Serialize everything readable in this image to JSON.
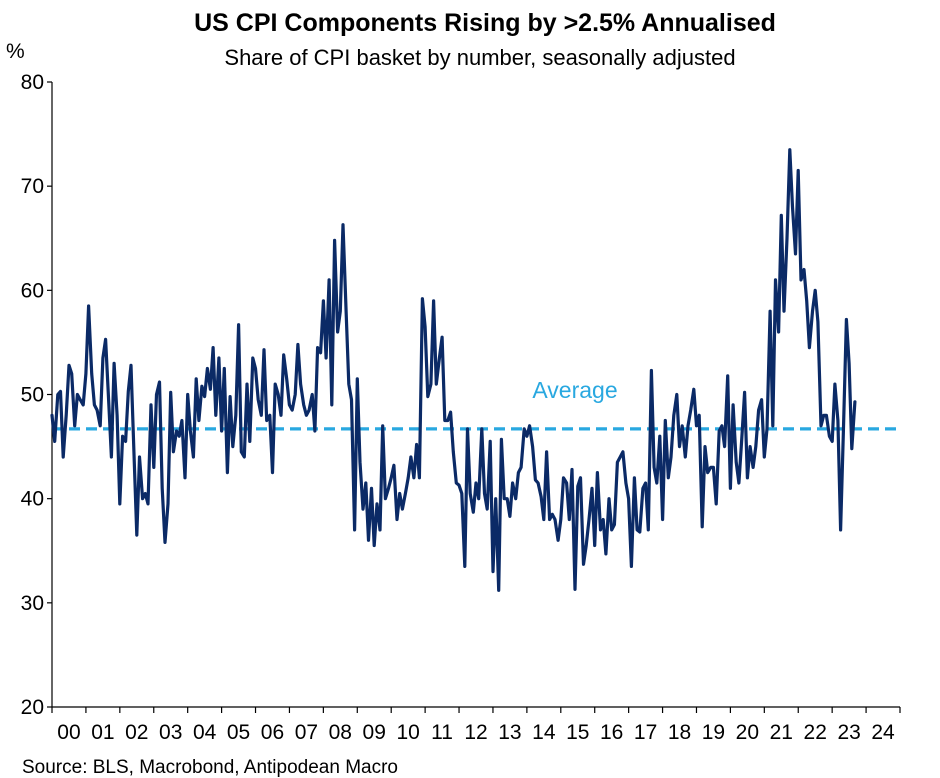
{
  "title": "US CPI Components Rising by >2.5% Annualised",
  "subtitle": "Share of CPI basket by number, seasonally adjusted",
  "y_unit": "%",
  "source": "Source: BLS, Macrobond, Antipodean Macro",
  "colors": {
    "series": "#0b2a66",
    "average": "#29a8e0"
  },
  "chart_data": {
    "type": "line",
    "title": "US CPI Components Rising by >2.5% Annualised",
    "subtitle": "Share of CPI basket by number, seasonally adjusted",
    "ylabel": "%",
    "ylim": [
      20,
      80
    ],
    "yticks": [
      20,
      30,
      40,
      50,
      60,
      70,
      80
    ],
    "xlim": [
      2000.0,
      2025.0
    ],
    "xtick_labels": [
      "00",
      "01",
      "02",
      "03",
      "04",
      "05",
      "06",
      "07",
      "08",
      "09",
      "10",
      "11",
      "12",
      "13",
      "14",
      "15",
      "16",
      "17",
      "18",
      "19",
      "20",
      "21",
      "22",
      "23",
      "24"
    ],
    "grid": false,
    "average": {
      "label": "Average",
      "value": 46.7
    },
    "series": [
      {
        "values": [
          [
            2000.0,
            48.0
          ],
          [
            2000.08,
            45.5
          ],
          [
            2000.17,
            50.0
          ],
          [
            2000.25,
            50.3
          ],
          [
            2000.33,
            44.0
          ],
          [
            2000.42,
            48.0
          ],
          [
            2000.5,
            52.8
          ],
          [
            2000.58,
            52.0
          ],
          [
            2000.67,
            47.0
          ],
          [
            2000.75,
            50.0
          ],
          [
            2000.83,
            49.5
          ],
          [
            2000.92,
            49.0
          ],
          [
            2001.0,
            52.0
          ],
          [
            2001.08,
            58.5
          ],
          [
            2001.17,
            52.0
          ],
          [
            2001.25,
            49.0
          ],
          [
            2001.33,
            48.5
          ],
          [
            2001.42,
            47.0
          ],
          [
            2001.5,
            53.5
          ],
          [
            2001.58,
            55.3
          ],
          [
            2001.67,
            49.5
          ],
          [
            2001.75,
            44.0
          ],
          [
            2001.83,
            53.0
          ],
          [
            2001.92,
            48.0
          ],
          [
            2002.0,
            39.5
          ],
          [
            2002.08,
            46.0
          ],
          [
            2002.17,
            45.5
          ],
          [
            2002.25,
            50.3
          ],
          [
            2002.33,
            52.8
          ],
          [
            2002.42,
            44.0
          ],
          [
            2002.5,
            36.5
          ],
          [
            2002.58,
            44.0
          ],
          [
            2002.67,
            40.0
          ],
          [
            2002.75,
            40.5
          ],
          [
            2002.83,
            39.5
          ],
          [
            2002.92,
            49.0
          ],
          [
            2003.0,
            43.0
          ],
          [
            2003.08,
            50.0
          ],
          [
            2003.17,
            51.2
          ],
          [
            2003.25,
            41.0
          ],
          [
            2003.33,
            35.8
          ],
          [
            2003.42,
            39.5
          ],
          [
            2003.5,
            50.2
          ],
          [
            2003.58,
            44.5
          ],
          [
            2003.67,
            46.5
          ],
          [
            2003.75,
            46.0
          ],
          [
            2003.83,
            47.5
          ],
          [
            2003.92,
            42.0
          ],
          [
            2004.0,
            50.0
          ],
          [
            2004.08,
            46.5
          ],
          [
            2004.17,
            44.0
          ],
          [
            2004.25,
            51.5
          ],
          [
            2004.33,
            47.5
          ],
          [
            2004.42,
            50.8
          ],
          [
            2004.5,
            49.8
          ],
          [
            2004.58,
            52.5
          ],
          [
            2004.67,
            50.5
          ],
          [
            2004.75,
            54.5
          ],
          [
            2004.83,
            48.0
          ],
          [
            2004.92,
            53.5
          ],
          [
            2005.0,
            46.5
          ],
          [
            2005.08,
            52.5
          ],
          [
            2005.17,
            42.5
          ],
          [
            2005.25,
            49.8
          ],
          [
            2005.33,
            45.0
          ],
          [
            2005.42,
            48.0
          ],
          [
            2005.5,
            56.7
          ],
          [
            2005.58,
            44.5
          ],
          [
            2005.67,
            44.0
          ],
          [
            2005.75,
            51.0
          ],
          [
            2005.83,
            45.5
          ],
          [
            2005.92,
            53.5
          ],
          [
            2006.0,
            52.5
          ],
          [
            2006.08,
            49.5
          ],
          [
            2006.17,
            48.0
          ],
          [
            2006.25,
            54.3
          ],
          [
            2006.33,
            47.5
          ],
          [
            2006.42,
            48.0
          ],
          [
            2006.5,
            42.5
          ],
          [
            2006.58,
            51.0
          ],
          [
            2006.67,
            50.0
          ],
          [
            2006.75,
            48.0
          ],
          [
            2006.83,
            53.8
          ],
          [
            2006.92,
            51.5
          ],
          [
            2007.0,
            49.0
          ],
          [
            2007.08,
            48.5
          ],
          [
            2007.17,
            50.0
          ],
          [
            2007.25,
            54.8
          ],
          [
            2007.33,
            51.0
          ],
          [
            2007.42,
            49.0
          ],
          [
            2007.5,
            48.0
          ],
          [
            2007.58,
            48.5
          ],
          [
            2007.67,
            50.0
          ],
          [
            2007.75,
            46.5
          ],
          [
            2007.83,
            54.5
          ],
          [
            2007.92,
            54.0
          ],
          [
            2008.0,
            59.0
          ],
          [
            2008.08,
            53.5
          ],
          [
            2008.17,
            61.0
          ],
          [
            2008.25,
            49.0
          ],
          [
            2008.33,
            64.8
          ],
          [
            2008.42,
            56.0
          ],
          [
            2008.5,
            58.0
          ],
          [
            2008.58,
            66.3
          ],
          [
            2008.67,
            58.0
          ],
          [
            2008.75,
            51.0
          ],
          [
            2008.83,
            49.5
          ],
          [
            2008.92,
            37.0
          ],
          [
            2009.0,
            51.5
          ],
          [
            2009.08,
            43.5
          ],
          [
            2009.17,
            39.0
          ],
          [
            2009.25,
            41.5
          ],
          [
            2009.33,
            36.0
          ],
          [
            2009.42,
            41.0
          ],
          [
            2009.5,
            35.5
          ],
          [
            2009.58,
            39.5
          ],
          [
            2009.67,
            37.0
          ],
          [
            2009.75,
            47.0
          ],
          [
            2009.83,
            40.0
          ],
          [
            2009.92,
            41.0
          ],
          [
            2010.0,
            42.0
          ],
          [
            2010.08,
            43.2
          ],
          [
            2010.17,
            38.0
          ],
          [
            2010.25,
            40.5
          ],
          [
            2010.33,
            39.0
          ],
          [
            2010.42,
            40.5
          ],
          [
            2010.5,
            42.0
          ],
          [
            2010.58,
            44.0
          ],
          [
            2010.67,
            42.0
          ],
          [
            2010.75,
            45.2
          ],
          [
            2010.83,
            42.0
          ],
          [
            2010.92,
            59.2
          ],
          [
            2011.0,
            56.5
          ],
          [
            2011.08,
            49.8
          ],
          [
            2011.17,
            51.0
          ],
          [
            2011.25,
            59.0
          ],
          [
            2011.33,
            51.0
          ],
          [
            2011.42,
            53.5
          ],
          [
            2011.5,
            55.5
          ],
          [
            2011.58,
            47.5
          ],
          [
            2011.67,
            47.5
          ],
          [
            2011.75,
            48.3
          ],
          [
            2011.83,
            44.5
          ],
          [
            2011.92,
            41.5
          ],
          [
            2012.0,
            41.3
          ],
          [
            2012.08,
            40.5
          ],
          [
            2012.17,
            33.5
          ],
          [
            2012.25,
            46.7
          ],
          [
            2012.33,
            40.5
          ],
          [
            2012.42,
            38.7
          ],
          [
            2012.5,
            41.5
          ],
          [
            2012.58,
            40.0
          ],
          [
            2012.67,
            46.7
          ],
          [
            2012.75,
            40.5
          ],
          [
            2012.83,
            39.0
          ],
          [
            2012.92,
            45.5
          ],
          [
            2013.0,
            33.0
          ],
          [
            2013.08,
            40.0
          ],
          [
            2013.17,
            31.2
          ],
          [
            2013.25,
            45.7
          ],
          [
            2013.33,
            40.0
          ],
          [
            2013.42,
            40.0
          ],
          [
            2013.5,
            38.3
          ],
          [
            2013.58,
            41.5
          ],
          [
            2013.67,
            40.0
          ],
          [
            2013.75,
            42.5
          ],
          [
            2013.83,
            43.0
          ],
          [
            2013.92,
            46.7
          ],
          [
            2014.0,
            46.0
          ],
          [
            2014.08,
            47.0
          ],
          [
            2014.17,
            45.0
          ],
          [
            2014.25,
            41.8
          ],
          [
            2014.33,
            41.5
          ],
          [
            2014.42,
            40.2
          ],
          [
            2014.5,
            38.0
          ],
          [
            2014.58,
            44.5
          ],
          [
            2014.67,
            38.0
          ],
          [
            2014.75,
            38.5
          ],
          [
            2014.83,
            38.0
          ],
          [
            2014.92,
            36.0
          ],
          [
            2015.0,
            38.0
          ],
          [
            2015.08,
            42.0
          ],
          [
            2015.17,
            41.5
          ],
          [
            2015.25,
            38.0
          ],
          [
            2015.33,
            42.8
          ],
          [
            2015.42,
            31.3
          ],
          [
            2015.5,
            41.2
          ],
          [
            2015.58,
            42.0
          ],
          [
            2015.67,
            33.7
          ],
          [
            2015.75,
            35.5
          ],
          [
            2015.83,
            38.0
          ],
          [
            2015.92,
            41.0
          ],
          [
            2016.0,
            35.5
          ],
          [
            2016.08,
            42.5
          ],
          [
            2016.17,
            37.0
          ],
          [
            2016.25,
            38.0
          ],
          [
            2016.33,
            34.7
          ],
          [
            2016.42,
            40.0
          ],
          [
            2016.5,
            37.0
          ],
          [
            2016.58,
            37.5
          ],
          [
            2016.67,
            43.5
          ],
          [
            2016.75,
            44.0
          ],
          [
            2016.83,
            44.5
          ],
          [
            2016.92,
            41.5
          ],
          [
            2017.0,
            40.0
          ],
          [
            2017.08,
            33.5
          ],
          [
            2017.17,
            42.0
          ],
          [
            2017.25,
            37.0
          ],
          [
            2017.33,
            36.8
          ],
          [
            2017.42,
            41.0
          ],
          [
            2017.5,
            41.5
          ],
          [
            2017.58,
            37.0
          ],
          [
            2017.67,
            52.3
          ],
          [
            2017.75,
            43.0
          ],
          [
            2017.83,
            41.5
          ],
          [
            2017.92,
            46.0
          ],
          [
            2018.0,
            38.0
          ],
          [
            2018.08,
            47.5
          ],
          [
            2018.17,
            42.0
          ],
          [
            2018.25,
            44.0
          ],
          [
            2018.33,
            48.0
          ],
          [
            2018.42,
            50.0
          ],
          [
            2018.5,
            45.0
          ],
          [
            2018.58,
            47.0
          ],
          [
            2018.67,
            44.0
          ],
          [
            2018.75,
            47.0
          ],
          [
            2018.83,
            48.5
          ],
          [
            2018.92,
            50.5
          ],
          [
            2019.0,
            47.0
          ],
          [
            2019.08,
            48.0
          ],
          [
            2019.17,
            37.3
          ],
          [
            2019.25,
            45.0
          ],
          [
            2019.33,
            42.5
          ],
          [
            2019.42,
            43.0
          ],
          [
            2019.5,
            43.0
          ],
          [
            2019.58,
            39.5
          ],
          [
            2019.67,
            46.5
          ],
          [
            2019.75,
            47.0
          ],
          [
            2019.83,
            45.0
          ],
          [
            2019.92,
            51.8
          ],
          [
            2020.0,
            41.0
          ],
          [
            2020.08,
            49.0
          ],
          [
            2020.17,
            43.5
          ],
          [
            2020.25,
            41.5
          ],
          [
            2020.33,
            45.5
          ],
          [
            2020.42,
            50.2
          ],
          [
            2020.5,
            42.0
          ],
          [
            2020.58,
            45.0
          ],
          [
            2020.67,
            43.0
          ],
          [
            2020.75,
            45.0
          ],
          [
            2020.83,
            48.5
          ],
          [
            2020.92,
            49.5
          ],
          [
            2021.0,
            44.0
          ],
          [
            2021.08,
            46.7
          ],
          [
            2021.17,
            58.0
          ],
          [
            2021.25,
            47.0
          ],
          [
            2021.33,
            61.0
          ],
          [
            2021.42,
            56.0
          ],
          [
            2021.5,
            67.2
          ],
          [
            2021.58,
            58.0
          ],
          [
            2021.67,
            65.0
          ],
          [
            2021.75,
            73.5
          ],
          [
            2021.83,
            68.0
          ],
          [
            2021.92,
            63.5
          ],
          [
            2022.0,
            71.5
          ],
          [
            2022.08,
            61.0
          ],
          [
            2022.17,
            62.0
          ],
          [
            2022.25,
            59.0
          ],
          [
            2022.33,
            54.5
          ],
          [
            2022.42,
            58.0
          ],
          [
            2022.5,
            60.0
          ],
          [
            2022.58,
            57.0
          ],
          [
            2022.67,
            47.0
          ],
          [
            2022.75,
            48.0
          ],
          [
            2022.83,
            48.0
          ],
          [
            2022.92,
            46.0
          ],
          [
            2023.0,
            45.5
          ],
          [
            2023.08,
            51.0
          ],
          [
            2023.17,
            47.5
          ],
          [
            2023.25,
            37.0
          ],
          [
            2023.33,
            46.5
          ],
          [
            2023.42,
            57.2
          ],
          [
            2023.5,
            53.0
          ],
          [
            2023.58,
            44.8
          ],
          [
            2023.67,
            49.3
          ]
        ]
      }
    ]
  }
}
